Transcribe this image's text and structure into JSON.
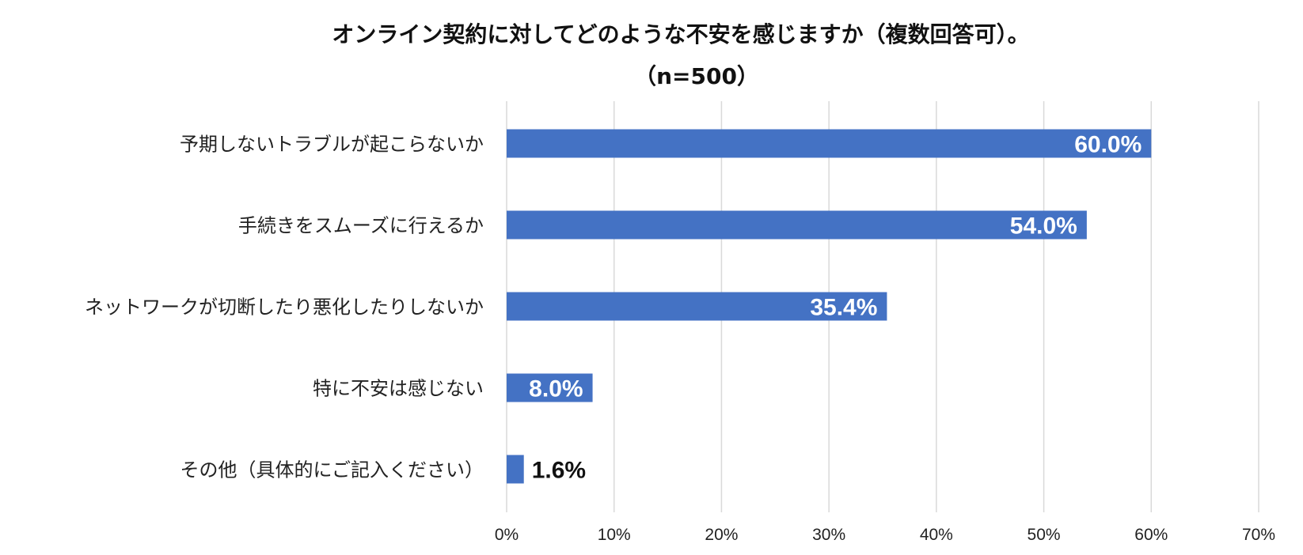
{
  "chart_data": {
    "type": "bar",
    "orientation": "horizontal",
    "title": "オンライン契約に対してどのような不安を感じますか（複数回答可）。",
    "subtitle": "（n=500）",
    "categories": [
      "予期しないトラブルが起こらないか",
      "手続きをスムーズに行えるか",
      "ネットワークが切断したり悪化したりしないか",
      "特に不安は感じない",
      "その他（具体的にご記入ください）"
    ],
    "values": [
      60.0,
      54.0,
      35.4,
      8.0,
      1.6
    ],
    "data_labels": [
      "60.0%",
      "54.0%",
      "35.4%",
      "8.0%",
      "1.6%"
    ],
    "xlim": [
      0,
      70
    ],
    "x_ticks": [
      "0%",
      "10%",
      "20%",
      "30%",
      "40%",
      "50%",
      "60%",
      "70%"
    ],
    "grid": "vertical",
    "bar_color": "#4472c4",
    "label_color_inside": "#ffffff",
    "label_color_outside": "#111111"
  }
}
